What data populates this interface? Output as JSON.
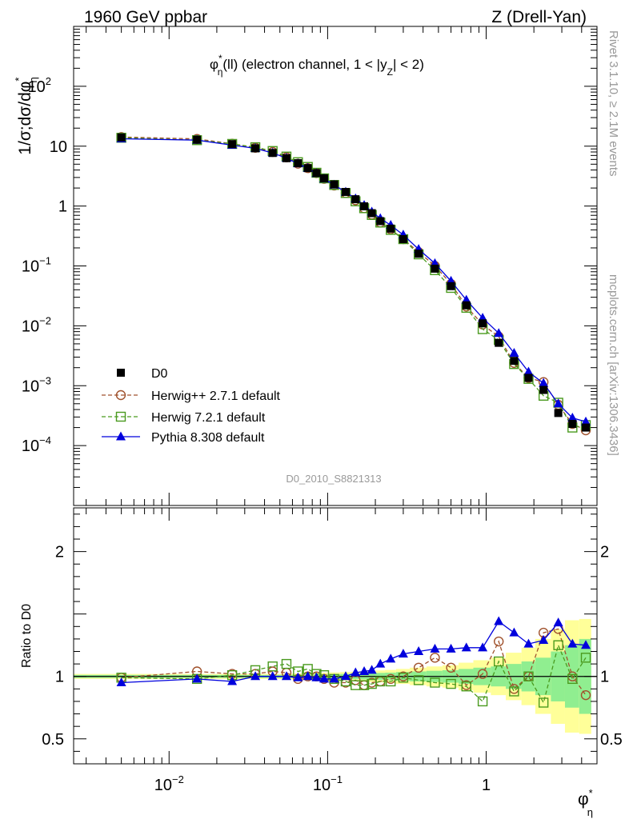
{
  "header": {
    "left": "1960 GeV ppbar",
    "right": "Z (Drell-Yan)"
  },
  "side_labels": {
    "rivet": "Rivet 3.1.10, ≥ 2.1M events",
    "mcplots": "mcplots.cern.ch [arXiv:1306.3436]"
  },
  "analysis_id": "D0_2010_S8821313",
  "title": {
    "phi": "φ",
    "sub": "η",
    "sup": "*",
    "rest1": "(ll) (electron channel, 1 < |y",
    "y_sub": "Z",
    "rest2": "| < 2)"
  },
  "axis_labels": {
    "main_y": "1/σ;dσ/dφ",
    "main_y_sub": "η",
    "main_y_sup": "*",
    "ratio_y": "Ratio to D0",
    "x": "φ",
    "x_sub": "η",
    "x_sup": "*"
  },
  "colors": {
    "data": "#000000",
    "herwigpp": "#a0522d",
    "herwig7": "#4a9a1e",
    "pythia": "#0000dd",
    "band_inner": "#90ee90",
    "band_outer": "#ffff99"
  },
  "chart_data": [
    {
      "type": "line",
      "panel": "main",
      "x_scale": "log",
      "y_scale": "log",
      "xlim": [
        0.0025,
        5.0
      ],
      "ylim": [
        1e-05,
        1000
      ],
      "x_ticks": [
        {
          "v": 0.01,
          "label": "10",
          "sup": "−2"
        },
        {
          "v": 0.1,
          "label": "10",
          "sup": "−1"
        },
        {
          "v": 1,
          "label": "1",
          "sup": ""
        }
      ],
      "y_ticks": [
        {
          "v": 0.0001,
          "label": "10",
          "sup": "−4"
        },
        {
          "v": 0.001,
          "label": "10",
          "sup": "−3"
        },
        {
          "v": 0.01,
          "label": "10",
          "sup": "−2"
        },
        {
          "v": 0.1,
          "label": "10",
          "sup": "−1"
        },
        {
          "v": 1,
          "label": "1",
          "sup": ""
        },
        {
          "v": 10,
          "label": "10",
          "sup": ""
        },
        {
          "v": 100,
          "label": "10",
          "sup": "2"
        }
      ],
      "x": [
        0.005,
        0.015,
        0.025,
        0.035,
        0.045,
        0.055,
        0.065,
        0.075,
        0.085,
        0.095,
        0.11,
        0.13,
        0.15,
        0.17,
        0.19,
        0.215,
        0.25,
        0.3,
        0.375,
        0.475,
        0.6,
        0.75,
        0.95,
        1.2,
        1.5,
        1.85,
        2.3,
        2.85,
        3.5,
        4.25
      ],
      "series": [
        {
          "name": "D0",
          "style": "data",
          "values": [
            14.0,
            12.8,
            10.8,
            9.2,
            7.7,
            6.3,
            5.2,
            4.3,
            3.55,
            2.9,
            2.3,
            1.72,
            1.3,
            0.99,
            0.76,
            0.56,
            0.42,
            0.28,
            0.16,
            0.09,
            0.046,
            0.022,
            0.011,
            0.0052,
            0.0026,
            0.00135,
            0.00085,
            0.00035,
            0.00023,
            0.0002
          ]
        },
        {
          "name": "Herwig++ 2.7.1 default",
          "style": "herwigpp",
          "values": [
            14.2,
            13.2,
            11.0,
            9.4,
            8.0,
            6.5,
            5.1,
            4.3,
            3.55,
            2.85,
            2.2,
            1.65,
            1.25,
            0.92,
            0.72,
            0.53,
            0.41,
            0.28,
            0.17,
            0.1,
            0.05,
            0.021,
            0.0105,
            0.0066,
            0.0024,
            0.00135,
            0.00115,
            0.00048,
            0.00023,
            0.00018
          ]
        },
        {
          "name": "Herwig 7.2.1 default",
          "style": "herwig7",
          "values": [
            13.8,
            12.6,
            10.9,
            9.6,
            8.3,
            6.7,
            5.4,
            4.5,
            3.6,
            2.9,
            2.25,
            1.65,
            1.2,
            0.92,
            0.71,
            0.53,
            0.4,
            0.28,
            0.156,
            0.085,
            0.043,
            0.02,
            0.0088,
            0.0058,
            0.0023,
            0.0013,
            0.00068,
            0.00052,
            0.0002,
            0.00022
          ]
        },
        {
          "name": "Pythia 8.308 default",
          "style": "pythia",
          "values": [
            13.3,
            12.6,
            10.4,
            9.2,
            7.7,
            6.3,
            5.1,
            4.3,
            3.5,
            2.85,
            2.25,
            1.72,
            1.33,
            1.03,
            0.8,
            0.62,
            0.48,
            0.33,
            0.19,
            0.11,
            0.056,
            0.027,
            0.0135,
            0.0075,
            0.0035,
            0.0017,
            0.0011,
            0.0005,
            0.00029,
            0.00025
          ]
        }
      ],
      "legend": [
        "D0",
        "Herwig++ 2.7.1 default",
        "Herwig 7.2.1 default",
        "Pythia 8.308 default"
      ],
      "legend_position": "bottom-left"
    },
    {
      "type": "line",
      "panel": "ratio",
      "x_scale": "log",
      "y_scale": "linear",
      "xlim": [
        0.0025,
        5.0
      ],
      "ylim": [
        0.3,
        2.35
      ],
      "y_ticks": [
        {
          "v": 0.5,
          "label": "0.5"
        },
        {
          "v": 1,
          "label": "1"
        },
        {
          "v": 2,
          "label": "2"
        }
      ],
      "x": [
        0.005,
        0.015,
        0.025,
        0.035,
        0.045,
        0.055,
        0.065,
        0.075,
        0.085,
        0.095,
        0.11,
        0.13,
        0.15,
        0.17,
        0.19,
        0.215,
        0.25,
        0.3,
        0.375,
        0.475,
        0.6,
        0.75,
        0.95,
        1.2,
        1.5,
        1.85,
        2.3,
        2.85,
        3.5,
        4.25
      ],
      "bin_edges": [
        0.002,
        0.01,
        0.02,
        0.03,
        0.04,
        0.05,
        0.06,
        0.07,
        0.08,
        0.09,
        0.1,
        0.12,
        0.14,
        0.16,
        0.18,
        0.2,
        0.23,
        0.27,
        0.33,
        0.42,
        0.53,
        0.67,
        0.83,
        1.07,
        1.33,
        1.67,
        2.04,
        2.56,
        3.14,
        3.86,
        4.6
      ],
      "band_inner": [
        0.012,
        0.012,
        0.012,
        0.012,
        0.012,
        0.013,
        0.014,
        0.015,
        0.016,
        0.017,
        0.018,
        0.02,
        0.022,
        0.024,
        0.026,
        0.028,
        0.03,
        0.035,
        0.04,
        0.045,
        0.05,
        0.06,
        0.07,
        0.08,
        0.1,
        0.12,
        0.15,
        0.2,
        0.25,
        0.3
      ],
      "band_outer": [
        0.02,
        0.02,
        0.02,
        0.02,
        0.02,
        0.022,
        0.024,
        0.026,
        0.028,
        0.03,
        0.032,
        0.035,
        0.038,
        0.042,
        0.045,
        0.048,
        0.052,
        0.06,
        0.07,
        0.08,
        0.09,
        0.11,
        0.13,
        0.15,
        0.19,
        0.23,
        0.3,
        0.38,
        0.45,
        0.46
      ],
      "series": [
        {
          "name": "Herwig++ 2.7.1 default",
          "style": "herwigpp",
          "values": [
            0.99,
            1.04,
            1.02,
            1.02,
            1.04,
            1.03,
            0.98,
            1.0,
            1.0,
            0.98,
            0.95,
            0.95,
            0.97,
            0.93,
            0.95,
            0.96,
            0.98,
            1.0,
            1.07,
            1.15,
            1.07,
            0.93,
            1.02,
            1.28,
            0.9,
            1.0,
            1.35,
            1.38,
            1.0,
            0.85
          ]
        },
        {
          "name": "Herwig 7.2.1 default",
          "style": "herwig7",
          "values": [
            0.99,
            0.98,
            1.01,
            1.05,
            1.08,
            1.1,
            1.04,
            1.06,
            1.02,
            1.01,
            0.98,
            0.96,
            0.93,
            0.93,
            0.94,
            0.96,
            0.96,
            0.99,
            0.97,
            0.95,
            0.94,
            0.92,
            0.8,
            1.12,
            0.88,
            1.0,
            0.79,
            1.25,
            0.98,
            1.15
          ]
        },
        {
          "name": "Pythia 8.308 default",
          "style": "pythia",
          "values": [
            0.95,
            0.98,
            0.96,
            1.0,
            1.0,
            1.0,
            0.99,
            1.0,
            0.99,
            0.98,
            0.98,
            1.0,
            1.03,
            1.04,
            1.05,
            1.1,
            1.14,
            1.18,
            1.2,
            1.22,
            1.22,
            1.23,
            1.23,
            1.44,
            1.35,
            1.26,
            1.29,
            1.43,
            1.26,
            1.25
          ]
        }
      ]
    }
  ]
}
